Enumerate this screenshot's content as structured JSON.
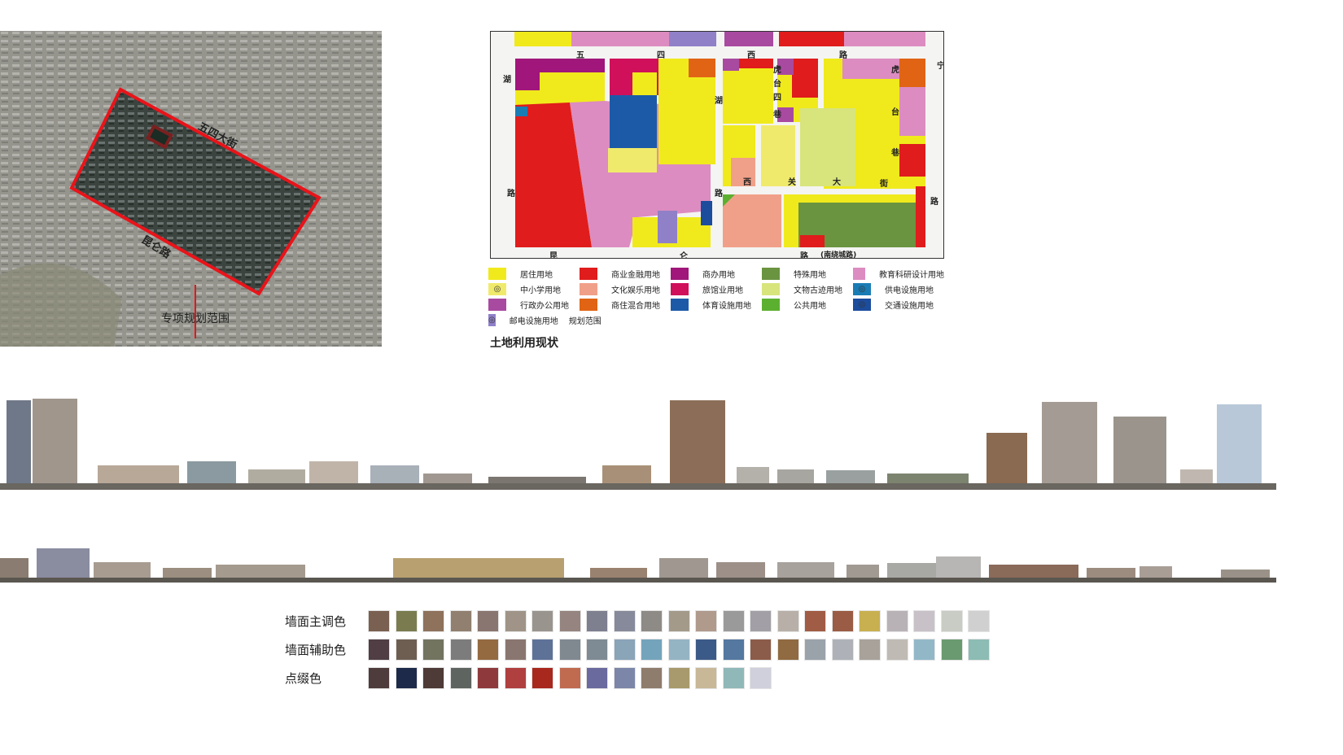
{
  "satellite": {
    "road_labels": [
      "五四大街",
      "昆仑路"
    ],
    "boundary_label": "专项规划范围",
    "boundary_color": "#e8141a"
  },
  "landuse_map": {
    "title": "土地利用现状",
    "road_labels": {
      "top": [
        "五",
        "四",
        "西",
        "路"
      ],
      "left": [
        "湖",
        "路"
      ],
      "middle": [
        "湖",
        "路"
      ],
      "lane": [
        "虎",
        "台",
        "四",
        "巷"
      ],
      "cross": [
        "西",
        "关",
        "大",
        "街"
      ],
      "right": [
        "虎",
        "台",
        "巷"
      ],
      "right_edge": [
        "宁",
        "路"
      ],
      "bottom": [
        "昆",
        "仑",
        "路",
        "(南绕城路)"
      ]
    },
    "legend": [
      {
        "label": "居住用地",
        "color": "#f0ea1c",
        "icon": ""
      },
      {
        "label": "商业金融用地",
        "color": "#e01c1c",
        "icon": ""
      },
      {
        "label": "商办用地",
        "color": "#a0167a",
        "icon": ""
      },
      {
        "label": "特殊用地",
        "color": "#6a9440",
        "icon": ""
      },
      {
        "label": "教育科研设计用地",
        "color": "#dc8cc0",
        "icon": ""
      },
      {
        "label": "中小学用地",
        "color": "#f0ea6c",
        "icon": "school-icon"
      },
      {
        "label": "文化娱乐用地",
        "color": "#f0a088",
        "icon": ""
      },
      {
        "label": "旅馆业用地",
        "color": "#d0105a",
        "icon": ""
      },
      {
        "label": "文物古迹用地",
        "color": "#d8e47c",
        "icon": ""
      },
      {
        "label": "供电设施用地",
        "color": "#1a7cb4",
        "icon": "power-icon"
      },
      {
        "label": "行政办公用地",
        "color": "#a84aa0",
        "icon": ""
      },
      {
        "label": "商住混合用地",
        "color": "#e06414",
        "icon": ""
      },
      {
        "label": "体育设施用地",
        "color": "#1c5aa8",
        "icon": ""
      },
      {
        "label": "公共用地",
        "color": "#5cb030",
        "icon": ""
      },
      {
        "label": "交通设施用地",
        "color": "#1c4c9c",
        "icon": "transport-icon"
      },
      {
        "label": "邮电设施用地",
        "color": "#9080c8",
        "icon": "post-icon"
      },
      {
        "label": "规划范围",
        "color": "#333333",
        "icon": "dashed-line"
      }
    ]
  },
  "palette": {
    "rows": [
      {
        "label": "墙面主调色",
        "colors": [
          "#7a6050",
          "#7a7c50",
          "#8e725c",
          "#918070",
          "#8a7670",
          "#a09488",
          "#9a948e",
          "#958480",
          "#7e8090",
          "#868a9a",
          "#8e8a86",
          "#a39a8a",
          "#b09a8c",
          "#9a9a9a",
          "#a2a0a6",
          "#b8b0a8",
          "#a05c44",
          "#9a5c44",
          "#c8b050",
          "#b8b2b6",
          "#c8c2c8",
          "#c8ccc4",
          "#d0d0d0"
        ]
      },
      {
        "label": "墙面辅助色",
        "colors": [
          "#503e44",
          "#6e5e52",
          "#737460",
          "#7c7c7c",
          "#946a40",
          "#8a7670",
          "#5e7298",
          "#808890",
          "#7e8a94",
          "#8aa4b8",
          "#74a4bc",
          "#94b4c4",
          "#3c5a88",
          "#5478a0",
          "#8c5c4a",
          "#906a40",
          "#9aa2aa",
          "#aeb2b8",
          "#a8a29a",
          "#c0bab4",
          "#92b8c8",
          "#6a9a70",
          "#8cbcb4"
        ]
      },
      {
        "label": "点缀色",
        "colors": [
          "#4e3c3c",
          "#1e2a4a",
          "#4e3a36",
          "#5e6460",
          "#8e3a3c",
          "#b04040",
          "#a8281e",
          "#c06a50",
          "#6a6a9e",
          "#7c86a8",
          "#8e7c6c",
          "#a89a6c",
          "#c8b898",
          "#90b8b8",
          "#d0d0dc"
        ]
      }
    ]
  }
}
